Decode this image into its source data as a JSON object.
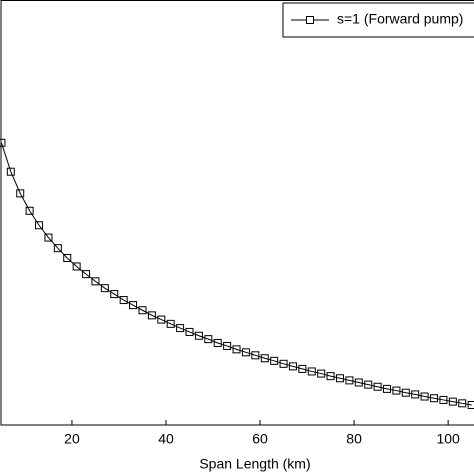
{
  "chart_data": {
    "type": "line",
    "x_label": "Span Length (km)",
    "x": [
      5,
      7,
      9,
      11,
      13,
      15,
      17,
      19,
      21,
      23,
      25,
      27,
      29,
      31,
      33,
      35,
      37,
      39,
      41,
      43,
      45,
      47,
      49,
      51,
      53,
      55,
      57,
      59,
      61,
      63,
      65,
      67,
      69,
      71,
      73,
      75,
      77,
      79,
      81,
      83,
      85,
      87,
      89,
      91,
      93,
      95,
      97,
      99,
      101,
      103,
      105
    ],
    "series": [
      {
        "name": "s=1 (Forward pump)",
        "color": "#000000",
        "marker": "square",
        "values": [
          0.664,
          0.596,
          0.545,
          0.504,
          0.47,
          0.441,
          0.416,
          0.393,
          0.373,
          0.355,
          0.338,
          0.322,
          0.308,
          0.294,
          0.282,
          0.27,
          0.258,
          0.248,
          0.238,
          0.228,
          0.219,
          0.21,
          0.202,
          0.193,
          0.186,
          0.178,
          0.171,
          0.164,
          0.157,
          0.151,
          0.144,
          0.138,
          0.132,
          0.126,
          0.121,
          0.115,
          0.11,
          0.105,
          0.1,
          0.095,
          0.09,
          0.085,
          0.081,
          0.076,
          0.072,
          0.067,
          0.063,
          0.059,
          0.055,
          0.051,
          0.047
        ]
      }
    ],
    "xlim": [
      4.7,
      105.5
    ],
    "xticks": [
      20,
      40,
      60,
      80,
      100
    ],
    "ylim": [
      0,
      1
    ],
    "legend": "top-right"
  }
}
